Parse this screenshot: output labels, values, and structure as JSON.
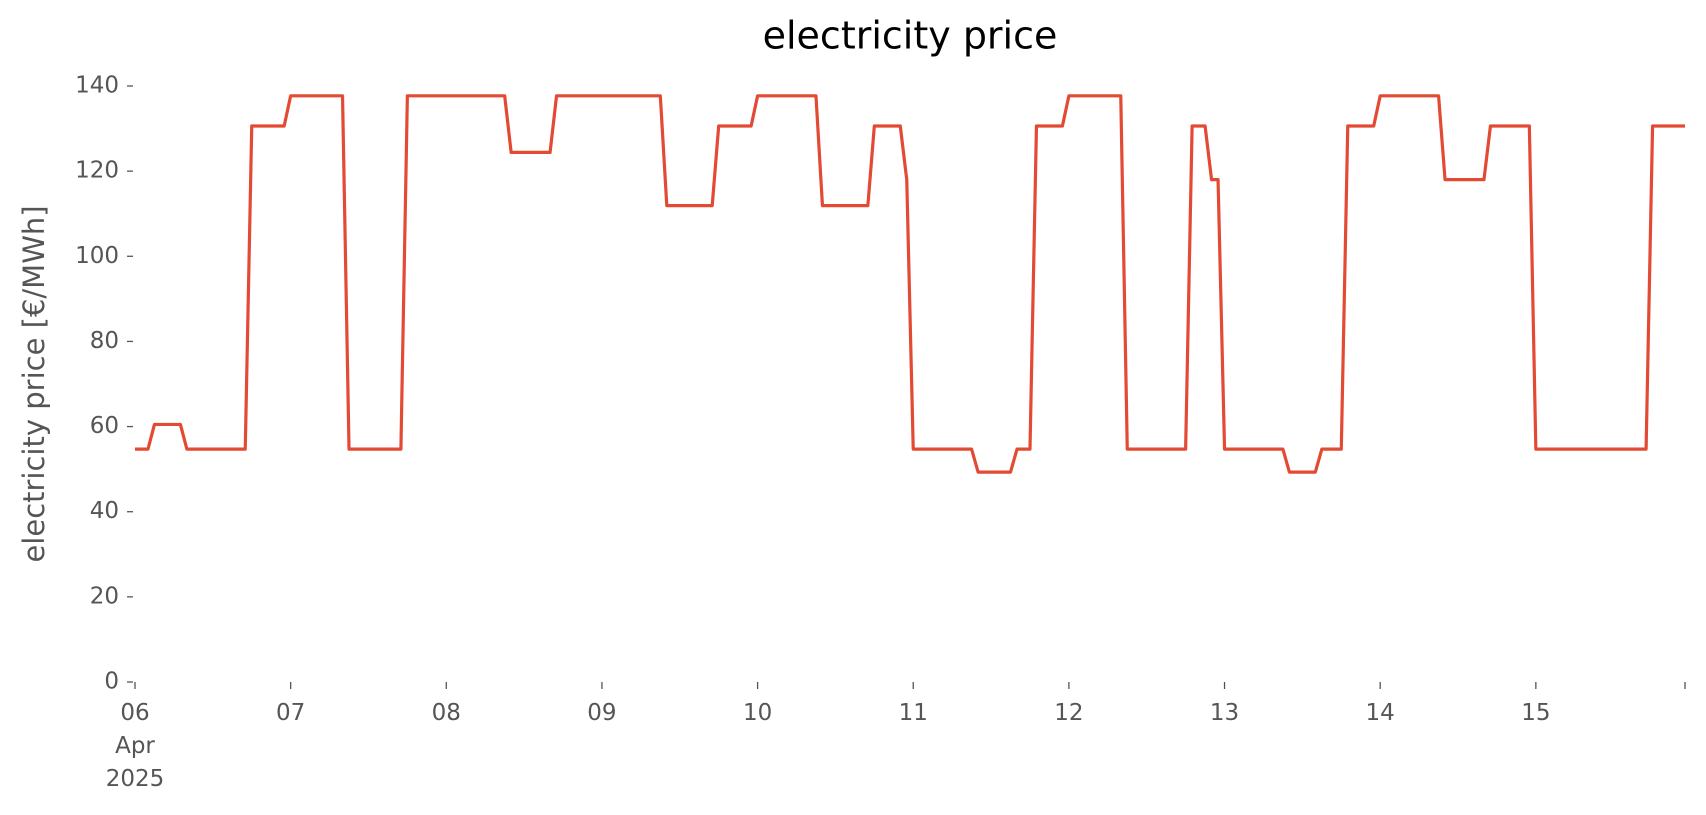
{
  "chart_data": {
    "type": "line",
    "title": "electricity price",
    "y_label": "electricity price [€/MWh]",
    "categories": [
      "06\nApr\n2025",
      null,
      null,
      null,
      null,
      null,
      null,
      null,
      null,
      null,
      null,
      null,
      null,
      null,
      null,
      null,
      null,
      null,
      null,
      null,
      null,
      null,
      null,
      null,
      "07",
      null,
      null,
      null,
      null,
      null,
      null,
      null,
      null,
      null,
      null,
      null,
      null,
      null,
      null,
      null,
      null,
      null,
      null,
      null,
      null,
      null,
      null,
      null,
      "08",
      null,
      null,
      null,
      null,
      null,
      null,
      null,
      null,
      null,
      null,
      null,
      null,
      null,
      null,
      null,
      null,
      null,
      null,
      null,
      null,
      null,
      null,
      null,
      "09",
      null,
      null,
      null,
      null,
      null,
      null,
      null,
      null,
      null,
      null,
      null,
      null,
      null,
      null,
      null,
      null,
      null,
      null,
      null,
      null,
      null,
      null,
      null,
      "10",
      null,
      null,
      null,
      null,
      null,
      null,
      null,
      null,
      null,
      null,
      null,
      null,
      null,
      null,
      null,
      null,
      null,
      null,
      null,
      null,
      null,
      null,
      null,
      "11",
      null,
      null,
      null,
      null,
      null,
      null,
      null,
      null,
      null,
      null,
      null,
      null,
      null,
      null,
      null,
      null,
      null,
      null,
      null,
      null,
      null,
      null,
      null,
      "12",
      null,
      null,
      null,
      null,
      null,
      null,
      null,
      null,
      null,
      null,
      null,
      null,
      null,
      null,
      null,
      null,
      null,
      null,
      null,
      null,
      null,
      null,
      null,
      "13",
      null,
      null,
      null,
      null,
      null,
      null,
      null,
      null,
      null,
      null,
      null,
      null,
      null,
      null,
      null,
      null,
      null,
      null,
      null,
      null,
      null,
      null,
      null,
      "14",
      null,
      null,
      null,
      null,
      null,
      null,
      null,
      null,
      null,
      null,
      null,
      null,
      null,
      null,
      null,
      null,
      null,
      null,
      null,
      null,
      null,
      null,
      null,
      "15",
      null,
      null,
      null,
      null,
      null,
      null,
      null,
      null,
      null,
      null,
      null,
      null,
      null,
      null,
      null,
      null,
      null,
      null,
      null,
      null,
      null,
      null,
      null
    ],
    "series": [
      {
        "name": "electricity price",
        "color": "#e24a33",
        "values": [
          54.7,
          54.7,
          54.7,
          60.5,
          60.5,
          60.5,
          60.5,
          60.5,
          54.7,
          54.7,
          54.7,
          54.7,
          54.7,
          54.7,
          54.7,
          54.7,
          54.7,
          54.7,
          130.6,
          130.6,
          130.6,
          130.6,
          130.6,
          130.6,
          137.7,
          137.7,
          137.7,
          137.7,
          137.7,
          137.7,
          137.7,
          137.7,
          137.7,
          54.7,
          54.7,
          54.7,
          54.7,
          54.7,
          54.7,
          54.7,
          54.7,
          54.7,
          137.7,
          137.7,
          137.7,
          137.7,
          137.7,
          137.7,
          137.7,
          137.7,
          137.7,
          137.7,
          137.7,
          137.7,
          137.7,
          137.7,
          137.7,
          137.7,
          124.4,
          124.4,
          124.4,
          124.4,
          124.4,
          124.4,
          124.4,
          137.7,
          137.7,
          137.7,
          137.7,
          137.7,
          137.7,
          137.7,
          137.7,
          137.7,
          137.7,
          137.7,
          137.7,
          137.7,
          137.7,
          137.7,
          137.7,
          137.7,
          111.9,
          111.9,
          111.9,
          111.9,
          111.9,
          111.9,
          111.9,
          111.9,
          130.6,
          130.6,
          130.6,
          130.6,
          130.6,
          130.6,
          137.7,
          137.7,
          137.7,
          137.7,
          137.7,
          137.7,
          137.7,
          137.7,
          137.7,
          137.7,
          111.9,
          111.9,
          111.9,
          111.9,
          111.9,
          111.9,
          111.9,
          111.9,
          130.6,
          130.6,
          130.6,
          130.6,
          130.6,
          118,
          54.7,
          54.7,
          54.7,
          54.7,
          54.7,
          54.7,
          54.7,
          54.7,
          54.7,
          54.7,
          49.3,
          49.3,
          49.3,
          49.3,
          49.3,
          49.3,
          54.7,
          54.7,
          54.7,
          130.6,
          130.6,
          130.6,
          130.6,
          130.6,
          137.7,
          137.7,
          137.7,
          137.7,
          137.7,
          137.7,
          137.7,
          137.7,
          137.7,
          54.7,
          54.7,
          54.7,
          54.7,
          54.7,
          54.7,
          54.7,
          54.7,
          54.7,
          54.7,
          130.6,
          130.6,
          130.6,
          118,
          118,
          54.7,
          54.7,
          54.7,
          54.7,
          54.7,
          54.7,
          54.7,
          54.7,
          54.7,
          54.7,
          49.3,
          49.3,
          49.3,
          49.3,
          49.3,
          54.7,
          54.7,
          54.7,
          54.7,
          130.6,
          130.6,
          130.6,
          130.6,
          130.6,
          137.7,
          137.7,
          137.7,
          137.7,
          137.7,
          137.7,
          137.7,
          137.7,
          137.7,
          137.7,
          118,
          118,
          118,
          118,
          118,
          118,
          118,
          130.6,
          130.6,
          130.6,
          130.6,
          130.6,
          130.6,
          130.6,
          54.7,
          54.7,
          54.7,
          54.7,
          54.7,
          54.7,
          54.7,
          54.7,
          54.7,
          54.7,
          54.7,
          54.7,
          54.7,
          54.7,
          54.7,
          54.7,
          54.7,
          54.7,
          130.6,
          130.6,
          130.6,
          130.6,
          130.6,
          130.6
        ]
      }
    ],
    "ylim": [
      0,
      140
    ],
    "yticks": [
      0,
      20,
      40,
      60,
      80,
      100,
      120,
      140
    ],
    "grid": false
  }
}
